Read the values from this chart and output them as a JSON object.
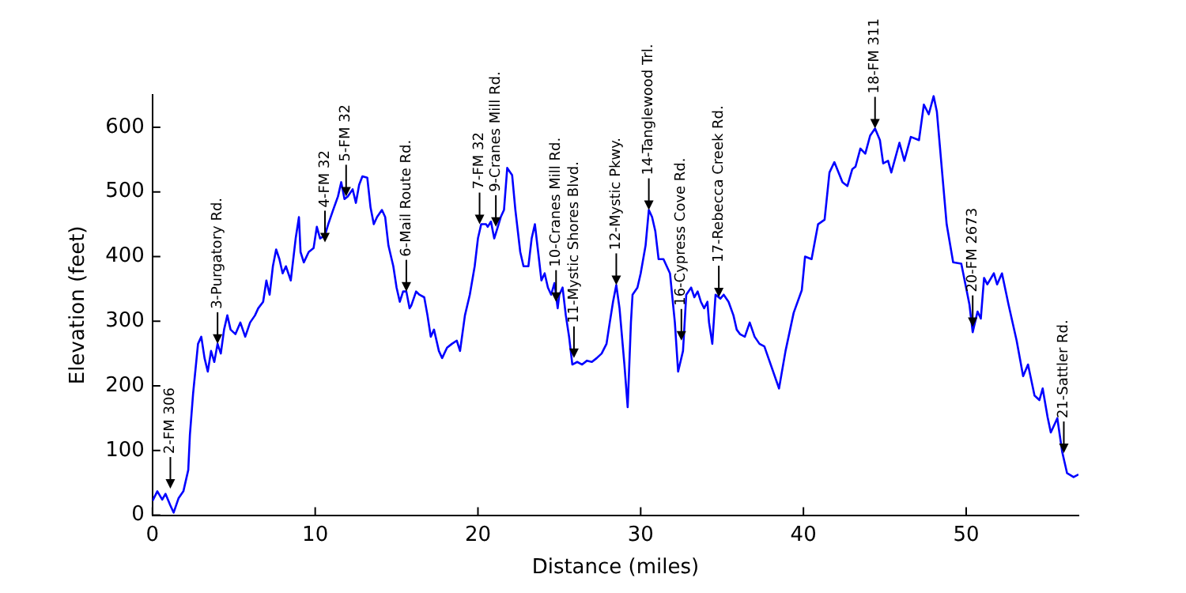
{
  "chart_data": {
    "type": "line",
    "xlabel": "Distance (miles)",
    "ylabel": "Elevation (feet)",
    "xlim": [
      0,
      56.9
    ],
    "ylim": [
      0,
      650
    ],
    "xticks": [
      0,
      10,
      20,
      30,
      40,
      50
    ],
    "yticks": [
      0,
      100,
      200,
      300,
      400,
      500,
      600
    ],
    "grid": false,
    "legend": false,
    "marker": "none",
    "line_style": "solid",
    "x": [
      0,
      0.3,
      0.6,
      0.8,
      1.1,
      1.3,
      1.6,
      1.9,
      2.2,
      2.3,
      2.5,
      2.8,
      3.0,
      3.2,
      3.4,
      3.6,
      3.8,
      4.0,
      4.2,
      4.4,
      4.6,
      4.8,
      5.1,
      5.4,
      5.7,
      6.0,
      6.3,
      6.5,
      6.8,
      7.0,
      7.2,
      7.4,
      7.6,
      7.8,
      8.0,
      8.2,
      8.5,
      8.8,
      9.0,
      9.1,
      9.3,
      9.6,
      9.9,
      10.1,
      10.3,
      10.6,
      10.8,
      11.1,
      11.4,
      11.6,
      11.8,
      12.0,
      12.3,
      12.5,
      12.7,
      12.9,
      13.2,
      13.4,
      13.6,
      13.8,
      14.1,
      14.3,
      14.5,
      14.8,
      15.0,
      15.2,
      15.4,
      15.6,
      15.8,
      15.9,
      16.2,
      16.4,
      16.7,
      16.9,
      17.1,
      17.3,
      17.6,
      17.8,
      18.1,
      18.4,
      18.7,
      18.9,
      19.2,
      19.5,
      19.8,
      20.0,
      20.2,
      20.5,
      20.6,
      20.8,
      21.0,
      21.2,
      21.4,
      21.6,
      21.8,
      22.1,
      22.3,
      22.6,
      22.8,
      23.1,
      23.3,
      23.5,
      23.7,
      23.9,
      24.1,
      24.3,
      24.5,
      24.7,
      24.9,
      25.0,
      25.2,
      25.4,
      25.6,
      25.8,
      26.1,
      26.4,
      26.7,
      27.0,
      27.3,
      27.6,
      27.9,
      28.1,
      28.3,
      28.5,
      28.7,
      29.0,
      29.2,
      29.4,
      29.5,
      29.8,
      30.0,
      30.3,
      30.5,
      30.7,
      30.9,
      31.1,
      31.4,
      31.6,
      31.8,
      32.1,
      32.3,
      32.6,
      32.8,
      33.1,
      33.3,
      33.5,
      33.7,
      33.9,
      34.1,
      34.2,
      34.4,
      34.6,
      34.9,
      35.1,
      35.4,
      35.7,
      35.9,
      36.1,
      36.4,
      36.7,
      37.0,
      37.3,
      37.6,
      38.5,
      38.9,
      39.4,
      39.9,
      40.1,
      40.5,
      40.9,
      41.3,
      41.6,
      41.9,
      42.4,
      42.7,
      43.0,
      43.2,
      43.5,
      43.8,
      44.1,
      44.4,
      44.7,
      44.9,
      45.2,
      45.4,
      45.9,
      46.2,
      46.6,
      47.1,
      47.4,
      47.7,
      48.0,
      48.2,
      48.8,
      49.2,
      49.7,
      50.2,
      50.4,
      50.7,
      50.9,
      51.1,
      51.3,
      51.7,
      51.9,
      52.2,
      52.6,
      53.1,
      53.5,
      53.8,
      54.2,
      54.5,
      54.7,
      55.0,
      55.2,
      55.6,
      55.9,
      56.2,
      56.6,
      56.9
    ],
    "series": [
      {
        "color": "#0000ff",
        "values": [
          22,
          37,
          24,
          33,
          15,
          4,
          26,
          37,
          70,
          124,
          189,
          265,
          276,
          243,
          222,
          254,
          237,
          265,
          250,
          287,
          309,
          287,
          280,
          298,
          276,
          298,
          309,
          320,
          330,
          363,
          341,
          385,
          411,
          396,
          374,
          385,
          363,
          428,
          461,
          407,
          391,
          407,
          413,
          446,
          428,
          433,
          450,
          472,
          493,
          515,
          489,
          493,
          504,
          483,
          511,
          524,
          522,
          476,
          450,
          461,
          472,
          461,
          417,
          385,
          352,
          330,
          346,
          346,
          320,
          324,
          346,
          341,
          337,
          309,
          276,
          287,
          254,
          243,
          259,
          265,
          270,
          254,
          309,
          341,
          385,
          428,
          450,
          450,
          446,
          454,
          428,
          444,
          461,
          472,
          537,
          526,
          472,
          407,
          385,
          385,
          428,
          450,
          407,
          363,
          374,
          352,
          341,
          359,
          320,
          341,
          352,
          309,
          276,
          233,
          237,
          233,
          239,
          237,
          243,
          250,
          265,
          298,
          330,
          356,
          320,
          233,
          167,
          298,
          341,
          352,
          374,
          417,
          472,
          461,
          439,
          396,
          396,
          385,
          374,
          298,
          222,
          254,
          341,
          352,
          337,
          346,
          330,
          320,
          330,
          298,
          265,
          341,
          335,
          341,
          330,
          309,
          287,
          280,
          276,
          298,
          276,
          265,
          261,
          196,
          254,
          313,
          348,
          400,
          396,
          450,
          457,
          530,
          546,
          515,
          509,
          535,
          539,
          567,
          559,
          587,
          598,
          580,
          544,
          548,
          530,
          576,
          548,
          585,
          580,
          635,
          620,
          648,
          624,
          450,
          391,
          389,
          326,
          283,
          315,
          304,
          367,
          357,
          374,
          357,
          374,
          326,
          270,
          215,
          233,
          185,
          178,
          196,
          152,
          128,
          150,
          98,
          65,
          59,
          63
        ]
      }
    ],
    "annotations": [
      {
        "text": "2-FM 306",
        "x": 1.1,
        "y": 41
      },
      {
        "text": "3-Purgatory Rd.",
        "x": 4.0,
        "y": 265
      },
      {
        "text": "4-FM 32",
        "x": 10.6,
        "y": 422
      },
      {
        "text": "5-FM 32",
        "x": 11.9,
        "y": 493
      },
      {
        "text": "6-Mail Route Rd.",
        "x": 15.6,
        "y": 346
      },
      {
        "text": "7-FM 32",
        "x": 20.1,
        "y": 450
      },
      {
        "text": "9-Cranes Mill Rd.",
        "x": 21.1,
        "y": 446
      },
      {
        "text": "10-Cranes Mill Rd.",
        "x": 24.8,
        "y": 330
      },
      {
        "text": "11-Mystic Shores Blvd.",
        "x": 25.9,
        "y": 243
      },
      {
        "text": "12-Mystic Pkwy.",
        "x": 28.5,
        "y": 356
      },
      {
        "text": "14-Tanglewood Trl.",
        "x": 30.5,
        "y": 472
      },
      {
        "text": "16-Cypress Cove Rd.",
        "x": 32.5,
        "y": 270
      },
      {
        "text": "17-Rebecca Creek Rd.",
        "x": 34.8,
        "y": 337
      },
      {
        "text": "18-FM 311",
        "x": 44.4,
        "y": 598
      },
      {
        "text": "20-FM 2673",
        "x": 50.4,
        "y": 291
      },
      {
        "text": "21-Sattler Rd.",
        "x": 56.0,
        "y": 96
      }
    ]
  }
}
